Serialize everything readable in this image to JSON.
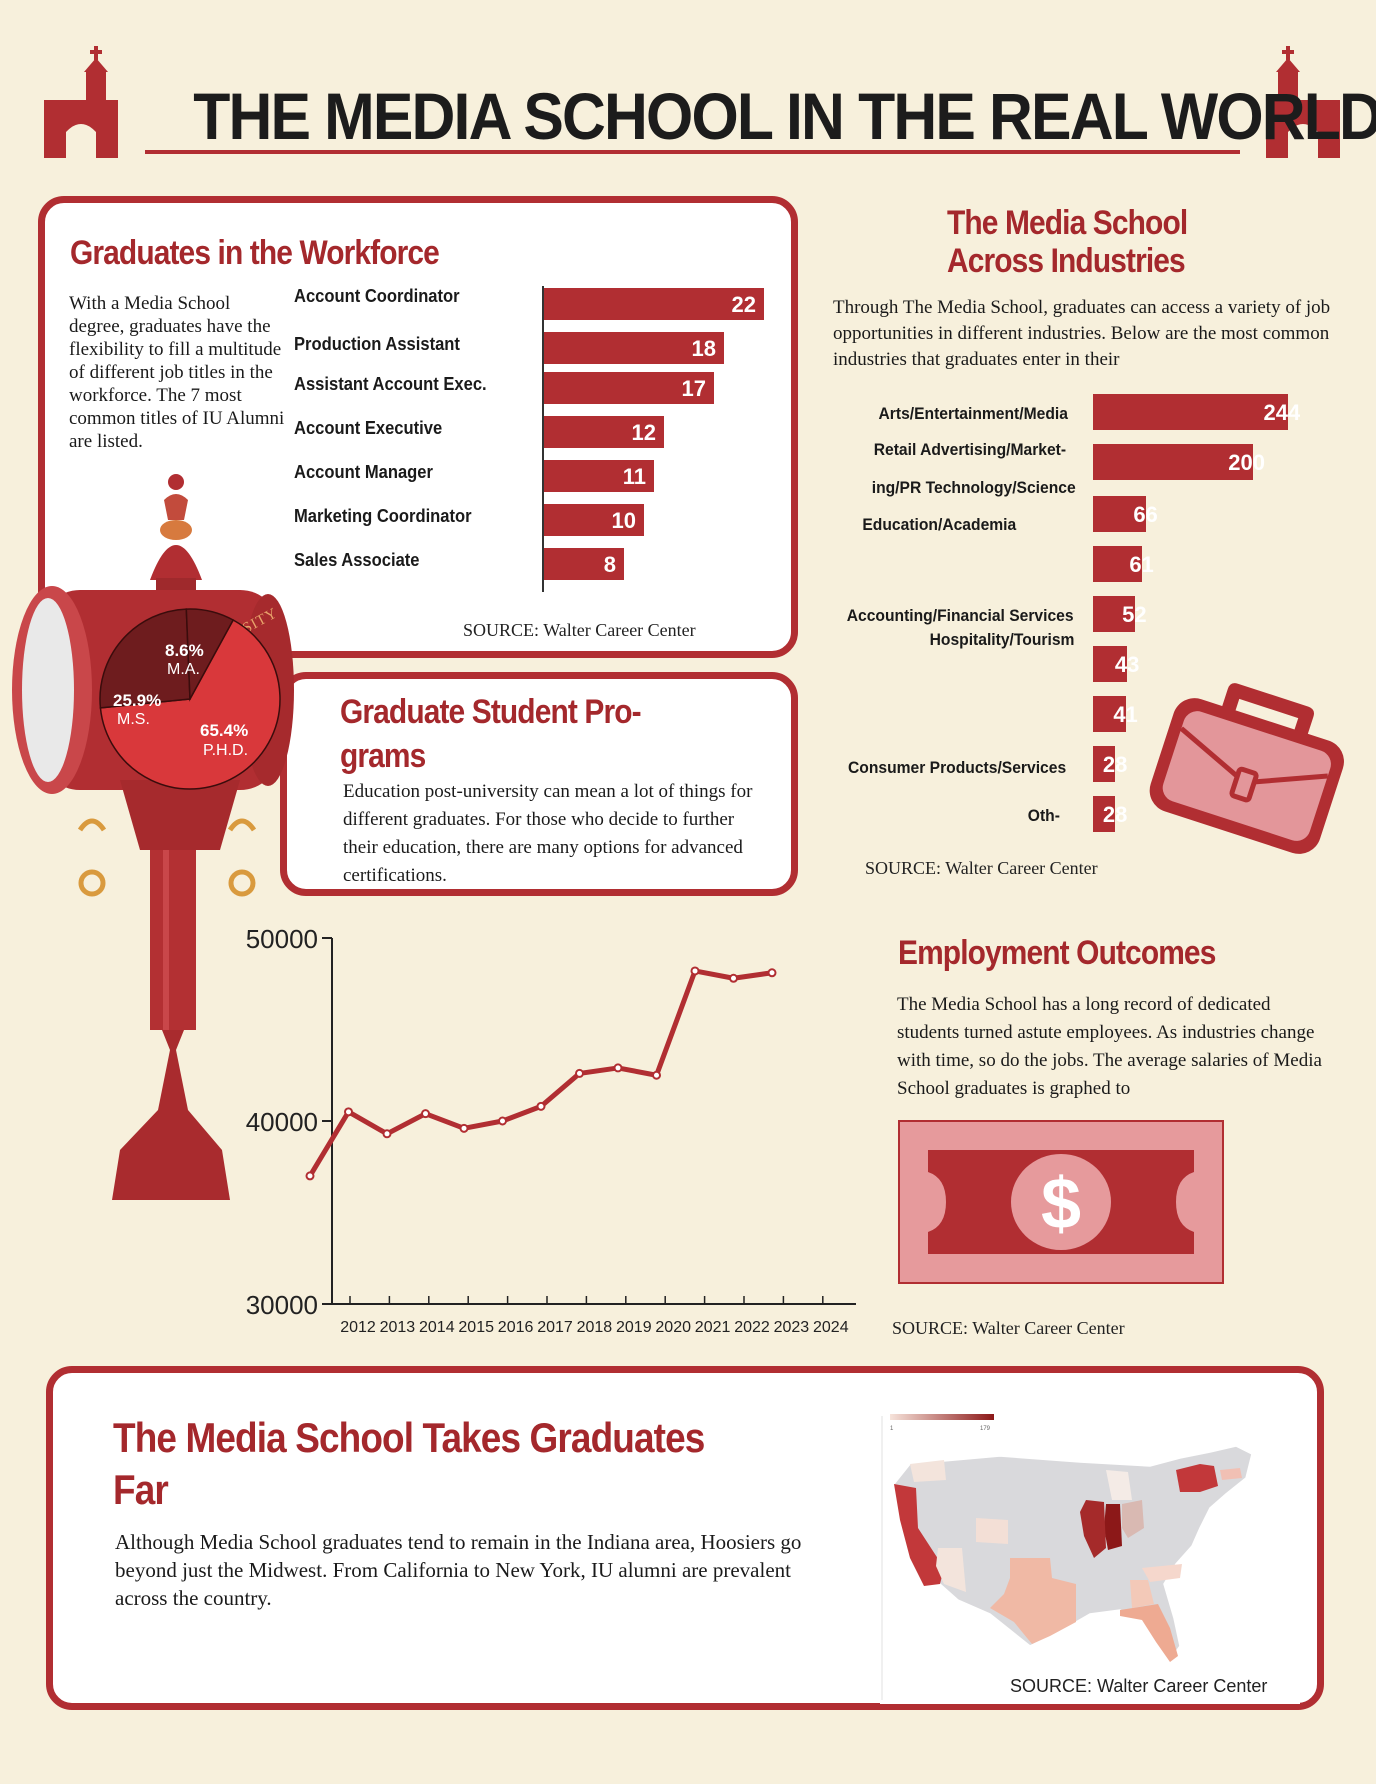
{
  "page": {
    "title": "THE MEDIA SCHOOL IN THE REAL WORLD"
  },
  "workforce": {
    "heading": "Graduates in the Workforce",
    "description": "With a Media School degree, graduates have the flexibility to fill a multitude of different job titles in the workforce. The 7 most common titles of IU Alumni are listed.",
    "source": "SOURCE: Walter Career Center"
  },
  "industries": {
    "heading_line1": "The Media School",
    "heading_line2": "Across Industries",
    "description": "Through The Media School, graduates can access a variety of job opportunities in different industries. Below are the most common industries that graduates enter in their",
    "source": "SOURCE: Walter Career Center"
  },
  "grad_programs": {
    "heading_line1": "Graduate Student Pro-",
    "heading_line2": "grams",
    "description": "Education post-university can mean a lot of things for different graduates. For those who decide to further their education, there are many options for advanced certifications.",
    "clock_text": "ERSITY"
  },
  "employment": {
    "heading": "Employment Outcomes",
    "description": "The Media School has a long record of dedicated students turned astute employees. As industries change with time, so do the jobs. The average salaries of Media School graduates is graphed to",
    "source": "SOURCE: Walter Career Center",
    "money_symbol": "$"
  },
  "geography": {
    "heading_line1": "The Media School Takes Graduates",
    "heading_line2": "Far",
    "description": "Although Media School graduates tend to remain in the Indiana area, Hoosiers go beyond just the Midwest. From California to New York, IU alumni are prevalent across the country.",
    "source": "SOURCE: Walter Career Center",
    "legend_min": "1",
    "legend_max": "179"
  },
  "colors": {
    "primary": "#b12e32",
    "pie_ms": "#6e1c1e",
    "pie_phd": "#d9383b",
    "background": "#f7f0dc"
  },
  "chart_data": [
    {
      "type": "bar",
      "orientation": "horizontal",
      "categories": [
        "Account Coordinator",
        "Production Assistant",
        "Assistant Account Exec.",
        "Account Executive",
        "Account Manager",
        "Marketing Coordinator",
        "Sales Associate"
      ],
      "values": [
        22,
        18,
        17,
        12,
        11,
        10,
        8
      ]
    },
    {
      "type": "bar",
      "orientation": "horizontal",
      "category_labels": [
        "Arts/Entertainment/Media",
        "Retail Advertising/Market-",
        "ing/PR Technology/Science",
        "Education/Academia",
        "Accounting/Financial Services",
        "Hospitality/Tourism",
        "Consumer Products/Services",
        "Oth-"
      ],
      "values": [
        244,
        200,
        66,
        61,
        52,
        43,
        41,
        28,
        28
      ],
      "value_labels": [
        "244",
        "200",
        "66",
        "61",
        "52",
        "43",
        "41",
        "28",
        "28"
      ]
    },
    {
      "type": "pie",
      "slices": [
        {
          "label": "P.H.D.",
          "value": 65.4,
          "display": "65.4%"
        },
        {
          "label": "M.S.",
          "value": 25.9,
          "display": "25.9%"
        },
        {
          "label": "M.A.",
          "value": 8.6,
          "display": "8.6%"
        }
      ]
    },
    {
      "type": "line",
      "x": [
        "2012",
        "2013",
        "2014",
        "2015",
        "2016",
        "2017",
        "2018",
        "2019",
        "2020",
        "2021",
        "2022",
        "2023",
        "2024"
      ],
      "y": [
        37000,
        40500,
        39300,
        40400,
        39600,
        40000,
        40800,
        42600,
        42900,
        42500,
        48200,
        47800,
        48100
      ],
      "y_ticks": [
        "50000",
        "40000",
        "30000"
      ],
      "ylim": [
        30000,
        50000
      ]
    }
  ]
}
